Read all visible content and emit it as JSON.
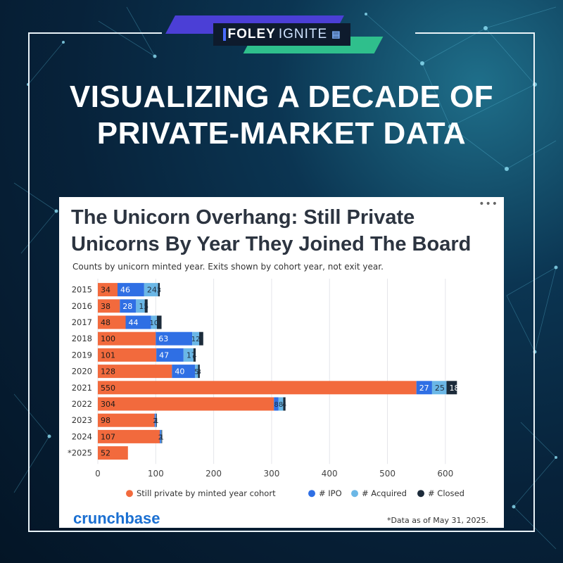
{
  "brand": {
    "foley": "FOLEY",
    "ignite": "IGNITE"
  },
  "headline": {
    "line1": "VISUALIZING A DECADE OF",
    "line2": "PRIVATE-MARKET DATA"
  },
  "card": {
    "menu": "•••",
    "title": "The Unicorn Overhang: Still Private Unicorns By Year They Joined The Board",
    "subtitle": "Counts by unicorn minted year. Exits shown by cohort year, not exit year.",
    "logo": "crunchbase",
    "footnote": "*Data as of May 31, 2025."
  },
  "chart_data": {
    "type": "bar",
    "orientation": "horizontal",
    "stacked": true,
    "categories": [
      "2015",
      "2016",
      "2017",
      "2018",
      "2019",
      "2020",
      "2021",
      "2022",
      "2023",
      "2024",
      "*2025"
    ],
    "series": [
      {
        "name": "Still private by minted year cohort",
        "color": "#f26a3d",
        "values": [
          34,
          38,
          48,
          100,
          101,
          128,
          550,
          304,
          98,
          107,
          52
        ]
      },
      {
        "name": "# IPO",
        "color": "#2f6fe4",
        "values": [
          46,
          28,
          44,
          63,
          47,
          40,
          27,
          8,
          2,
          2,
          0
        ]
      },
      {
        "name": "# Acquired",
        "color": "#6bb7e6",
        "values": [
          24,
          15,
          10,
          12,
          17,
          5,
          25,
          8,
          1,
          1,
          0
        ]
      },
      {
        "name": "# Closed",
        "color": "#1c2b3a",
        "values": [
          3,
          5,
          8,
          7,
          4,
          3,
          18,
          4,
          1,
          1,
          0
        ]
      }
    ],
    "xlim": [
      0,
      650
    ],
    "xticks": [
      0,
      100,
      200,
      300,
      400,
      500,
      600
    ],
    "grid": true,
    "legend_position": "bottom"
  }
}
